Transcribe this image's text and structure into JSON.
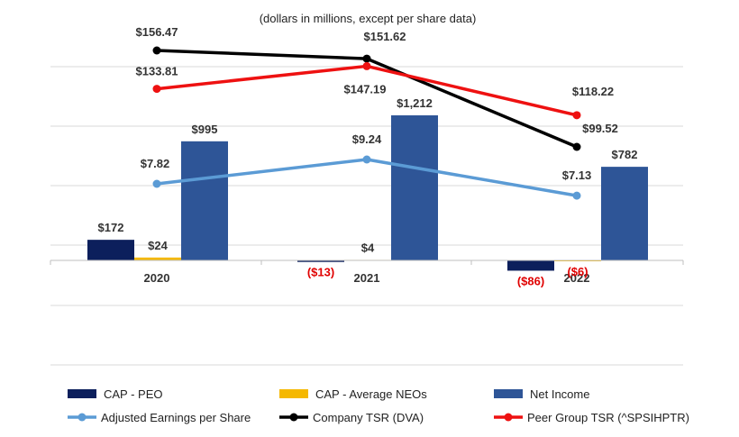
{
  "chart_data": {
    "type": "bar",
    "title": "(dollars in millions, except per share data)",
    "categories": [
      "2020",
      "2021",
      "2022"
    ],
    "bar_series": [
      {
        "name": "CAP - PEO",
        "color": "#0c1f5c",
        "values": [
          172,
          -13,
          -86
        ],
        "labels": [
          "$172",
          "($13)",
          "($86)"
        ]
      },
      {
        "name": "CAP -  Average NEOs",
        "color": "#f5b800",
        "values": [
          24,
          4,
          -6
        ],
        "labels": [
          "$24",
          "$4",
          "($6)"
        ]
      },
      {
        "name": "Net Income",
        "color": "#2e5597",
        "values": [
          995,
          1212,
          782
        ],
        "labels": [
          "$995",
          "$1,212",
          "$782"
        ]
      }
    ],
    "line_series": [
      {
        "name": "Adjusted Earnings per Share",
        "color": "#5b9bd5",
        "values": [
          7.82,
          9.24,
          7.13
        ],
        "labels": [
          "$7.82",
          "$9.24",
          "$7.13"
        ]
      },
      {
        "name": "Company TSR (DVA)",
        "color": "#000000",
        "values": [
          156.47,
          151.62,
          99.52
        ],
        "labels": [
          "$156.47",
          "$151.62",
          "$99.52"
        ]
      },
      {
        "name": "Peer Group TSR (^SPSIHPTR)",
        "color": "#ee1111",
        "values": [
          133.81,
          147.19,
          118.22
        ],
        "labels": [
          "$133.81",
          "$147.19",
          "$118.22"
        ]
      }
    ],
    "negative_label_color": "#e00000",
    "legend_position": "bottom",
    "grid": true
  }
}
